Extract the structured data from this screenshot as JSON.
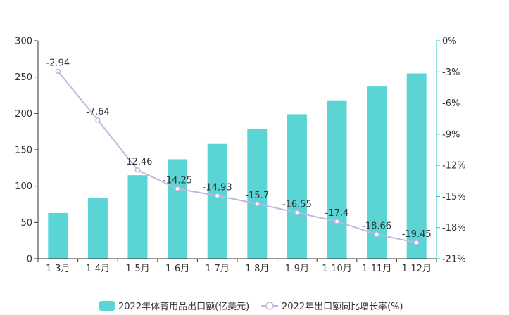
{
  "chart_data": {
    "type": "bar",
    "categories": [
      "1-3月",
      "1-4月",
      "1-5月",
      "1-6月",
      "1-7月",
      "1-8月",
      "1-9月",
      "1-10月",
      "1-11月",
      "1-12月"
    ],
    "series": [
      {
        "name": "2022年体育用品出口额(亿美元)",
        "type": "bar",
        "axis": "left",
        "color": "#5bd4d6",
        "values": [
          63,
          84,
          115,
          137,
          158,
          179,
          199,
          218,
          237,
          255
        ]
      },
      {
        "name": "2022年出口额同比增长率(%)",
        "type": "line",
        "axis": "right",
        "color": "#c3b7e0",
        "values": [
          -2.94,
          -7.64,
          -12.46,
          -14.25,
          -14.93,
          -15.7,
          -16.55,
          -17.4,
          -18.66,
          -19.45
        ],
        "labels": [
          "-2.94",
          "-7.64",
          "-12.46",
          "-14.25",
          "-14.93",
          "-15.7",
          "-16.55",
          "-17.4",
          "-18.66",
          "-19.45"
        ]
      }
    ],
    "y_left": {
      "lim": [
        0,
        300
      ],
      "ticks": [
        0,
        50,
        100,
        150,
        200,
        250,
        300
      ],
      "tick_labels": [
        "0",
        "50",
        "100",
        "150",
        "200",
        "250",
        "300"
      ]
    },
    "y_right": {
      "lim": [
        -21,
        0
      ],
      "ticks": [
        -21,
        -18,
        -15,
        -12,
        -9,
        -6,
        -3,
        0
      ],
      "tick_labels": [
        "-21%",
        "-18%",
        "-15%",
        "-12%",
        "-9%",
        "-6%",
        "-3%",
        "0%"
      ]
    },
    "grid": false,
    "legend": {
      "position": "bottom",
      "items": [
        {
          "label": "2022年体育用品出口额(亿美元)",
          "icon": "bar-swatch-icon",
          "color": "#5bd4d6"
        },
        {
          "label": "2022年出口额同比增长率(%)",
          "icon": "line-marker-icon",
          "color": "#c3b7e0"
        }
      ]
    },
    "axis_color": "#333333",
    "right_axis_color": "#23c6c8"
  }
}
